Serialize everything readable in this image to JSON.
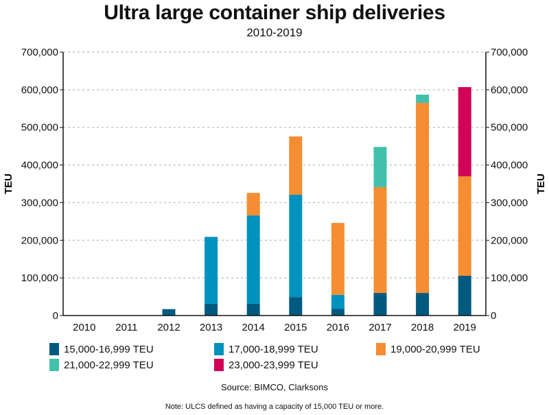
{
  "chart_data": {
    "type": "bar",
    "stacked": true,
    "title": "Ultra large container ship deliveries",
    "subtitle": "2010-2019",
    "xlabel": "",
    "ylabel": "TEU",
    "ylabel_right": "TEU",
    "ylim": [
      0,
      700000
    ],
    "yticks": [
      0,
      100000,
      200000,
      300000,
      400000,
      500000,
      600000,
      700000
    ],
    "ytick_labels": [
      "0",
      "100,000",
      "200,000",
      "300,000",
      "400,000",
      "500,000",
      "600,000",
      "700,000"
    ],
    "grid": true,
    "legend_position": "bottom",
    "categories": [
      "2010",
      "2011",
      "2012",
      "2013",
      "2014",
      "2015",
      "2016",
      "2017",
      "2018",
      "2019"
    ],
    "series": [
      {
        "name": "15,000-16,999 TEU",
        "color": "#005a80",
        "values": [
          0,
          0,
          17000,
          31000,
          31000,
          49000,
          18000,
          60000,
          60000,
          106000
        ]
      },
      {
        "name": "17,000-18,999 TEU",
        "color": "#0092bf",
        "values": [
          0,
          0,
          0,
          178000,
          235000,
          272000,
          37000,
          0,
          0,
          0
        ]
      },
      {
        "name": "19,000-20,999 TEU",
        "color": "#f58d32",
        "values": [
          0,
          0,
          0,
          0,
          60000,
          155000,
          191000,
          281000,
          505000,
          264000
        ]
      },
      {
        "name": "21,000-22,999 TEU",
        "color": "#41c1ac",
        "values": [
          0,
          0,
          0,
          0,
          0,
          0,
          0,
          107000,
          22000,
          0
        ]
      },
      {
        "name": "23,000-23,999 TEU",
        "color": "#d20056",
        "values": [
          0,
          0,
          0,
          0,
          0,
          0,
          0,
          0,
          0,
          237000
        ]
      }
    ],
    "source": "Source: BIMCO, Clarksons",
    "note": "Note: ULCS defined as having a capacity of 15,000 TEU or more."
  }
}
